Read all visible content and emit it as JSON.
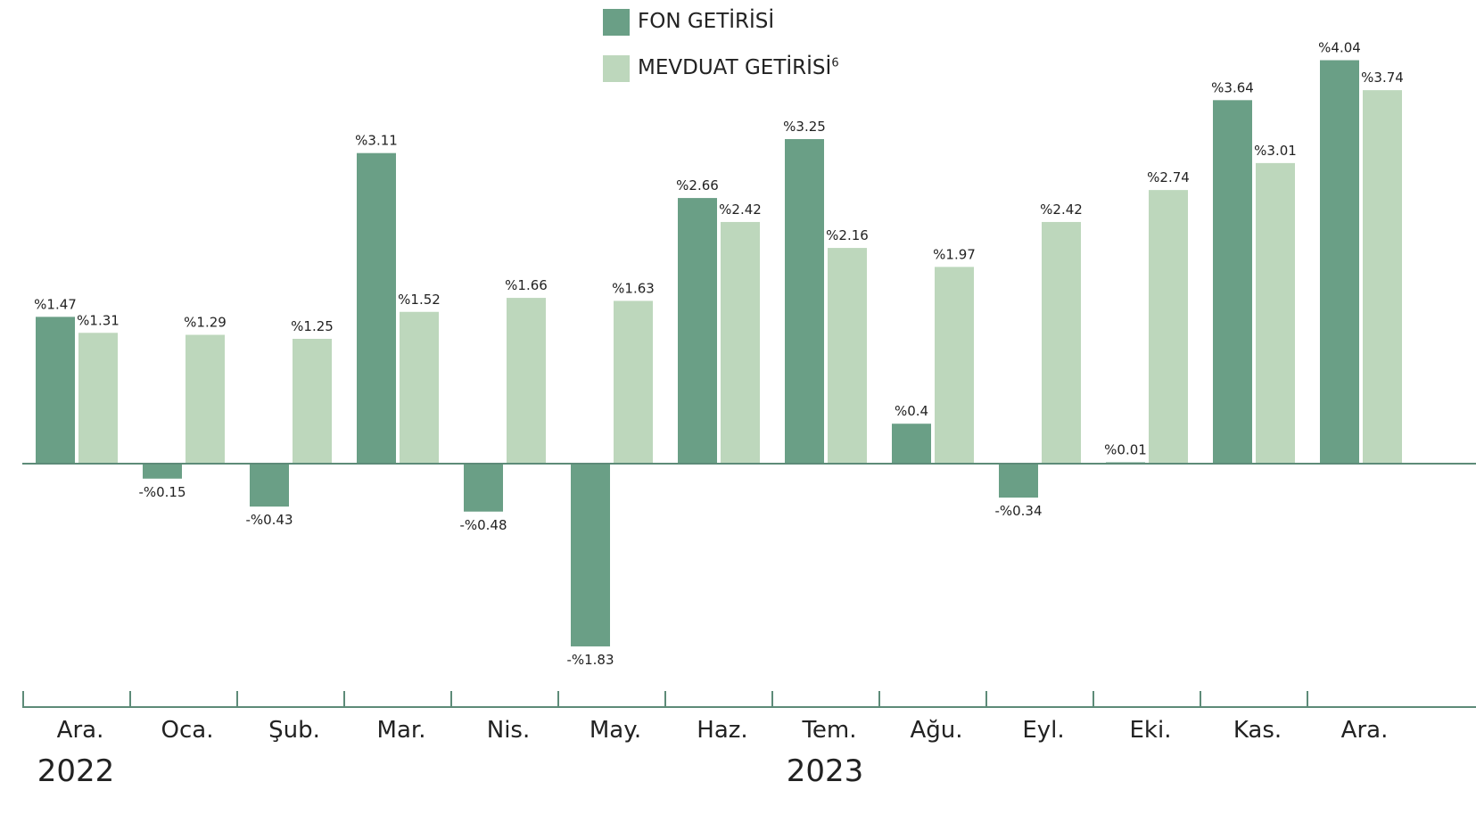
{
  "chart_data": {
    "type": "bar",
    "title": "",
    "xlabel": "",
    "ylabel": "",
    "value_prefix": "%",
    "categories": [
      "Ara.",
      "Oca.",
      "Şub.",
      "Mar.",
      "Nis.",
      "May.",
      "Haz.",
      "Tem.",
      "Ağu.",
      "Eyl.",
      "Eki.",
      "Kas.",
      "Ara."
    ],
    "years": [
      {
        "label": "2022",
        "category_index": 0
      },
      {
        "label": "2023",
        "category_index": 7
      }
    ],
    "series": [
      {
        "name": "FON GETİRİSİ",
        "color": "#6a9f86",
        "values": [
          1.47,
          -0.15,
          -0.43,
          3.11,
          -0.48,
          -1.83,
          2.66,
          3.25,
          0.4,
          -0.34,
          0.01,
          3.64,
          4.04
        ],
        "labels": [
          "%1.47",
          "-%0.15",
          "-%0.43",
          "%3.11",
          "-%0.48",
          "-%1.83",
          "%2.66",
          "%3.25",
          "%0.4",
          "-%0.34",
          "%0.01",
          "%3.64",
          "%4.04"
        ]
      },
      {
        "name": "MEVDUAT GETİRİSİ",
        "name_superscript": "6",
        "color": "#bdd7bc",
        "values": [
          1.31,
          1.29,
          1.25,
          1.52,
          1.66,
          1.63,
          2.42,
          2.16,
          1.97,
          2.42,
          2.74,
          3.01,
          3.74
        ],
        "labels": [
          "%1.31",
          "%1.29",
          "%1.25",
          "%1.52",
          "%1.66",
          "%1.63",
          "%2.42",
          "%2.16",
          "%1.97",
          "%2.42",
          "%2.74",
          "%3.01",
          "%3.74"
        ]
      }
    ],
    "ylim": [
      -2.2,
      4.6
    ],
    "grid": false,
    "legend_position": "top-center"
  }
}
